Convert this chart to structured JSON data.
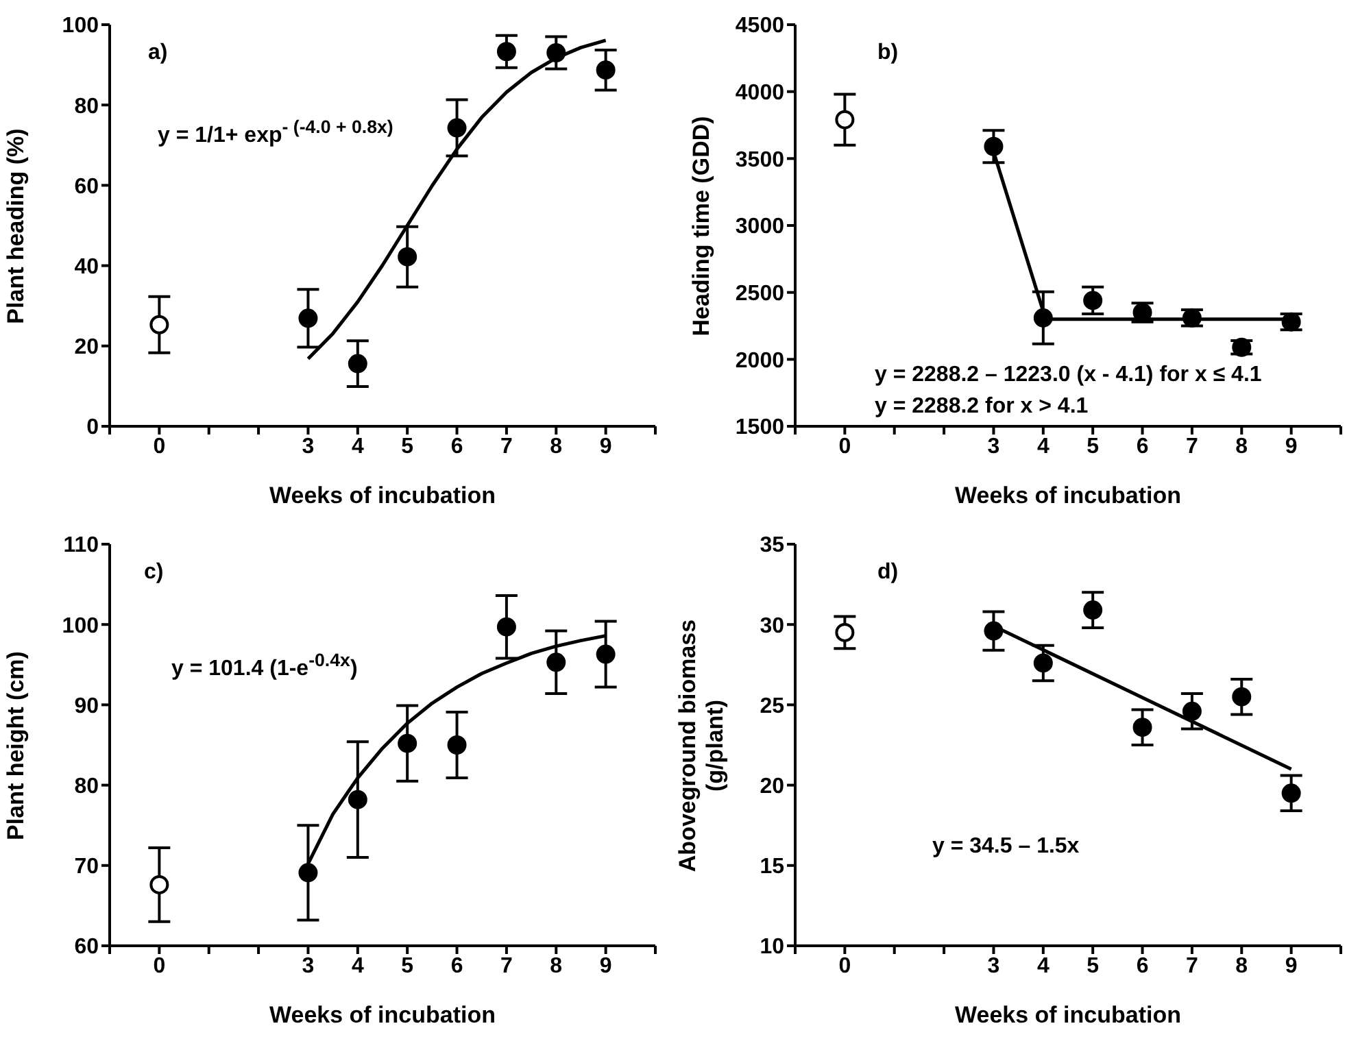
{
  "chart_data": [
    {
      "type": "scatter",
      "xlabel": "Weeks of incubation",
      "ylabel": "Plant heading (%)",
      "annotations": [
        "a)",
        "y = 1/1+ exp$^{- (-4.0 + 0.8x)}$"
      ],
      "xlim": [
        -1,
        10
      ],
      "xticks": [
        {
          "value": -1,
          "label": null
        },
        0,
        {
          "value": 1,
          "label": null
        },
        {
          "value": 2,
          "label": null
        },
        3,
        4,
        5,
        6,
        7,
        8,
        9,
        {
          "value": 10,
          "label": null
        }
      ],
      "ylim": [
        0,
        100
      ],
      "yticks": [
        0,
        20,
        40,
        60,
        80,
        100
      ],
      "series": [
        {
          "color": "#ffffff",
          "marker": "circle",
          "x": [
            0
          ],
          "values": [
            25.3
          ],
          "errors": [
            7
          ]
        },
        {
          "color": "#000000",
          "marker": "circle",
          "x": [
            3,
            4,
            5,
            6,
            7,
            8,
            9
          ],
          "values": [
            26.9,
            15.6,
            42.2,
            74.3,
            93.3,
            93,
            88.7
          ],
          "errors": [
            7.2,
            5.7,
            7.5,
            7,
            4,
            4,
            5
          ]
        },
        {
          "type": "line",
          "color": "#000000",
          "x": [
            3,
            3.5,
            4,
            4.5,
            5,
            5.5,
            6,
            6.5,
            7,
            7.5,
            8,
            8.5,
            9
          ],
          "values": [
            16.8,
            23.1,
            31,
            40.1,
            50,
            59.9,
            69,
            76.9,
            83.2,
            88.1,
            91.7,
            94.3,
            96.1
          ]
        }
      ]
    },
    {
      "type": "scatter",
      "xlabel": "Weeks of incubation",
      "ylabel": "Heading time (GDD)",
      "annotations": [
        "b)",
        "y  = 2288.2 – 1223.0 (x - 4.1) for x ≤ 4.1",
        "y  = 2288.2 for x > 4.1"
      ],
      "xlim": [
        -1,
        10
      ],
      "xticks": [
        {
          "value": -1,
          "label": null
        },
        0,
        {
          "value": 1,
          "label": null
        },
        {
          "value": 2,
          "label": null
        },
        3,
        4,
        5,
        6,
        7,
        8,
        9,
        {
          "value": 10,
          "label": null
        }
      ],
      "ylim": [
        1500,
        4500
      ],
      "yticks": [
        1500,
        2000,
        2500,
        3000,
        3500,
        4000,
        4500
      ],
      "series": [
        {
          "color": "#ffffff",
          "marker": "circle",
          "x": [
            0
          ],
          "values": [
            3790
          ],
          "errors": [
            190
          ]
        },
        {
          "color": "#000000",
          "marker": "circle",
          "x": [
            3,
            4,
            5,
            6,
            7,
            8,
            9
          ],
          "values": [
            3590,
            2310,
            2440,
            2350,
            2310,
            2090,
            2280
          ],
          "errors": [
            120,
            195,
            100,
            70,
            60,
            50,
            60
          ]
        },
        {
          "type": "line",
          "color": "#000000",
          "x": [
            3,
            4.05,
            9
          ],
          "values": [
            3550,
            2300,
            2300
          ]
        }
      ]
    },
    {
      "type": "scatter",
      "xlabel": "Weeks of incubation",
      "ylabel": "Plant height (cm)",
      "annotations": [
        "c)",
        "y = 101.4 (1-e$^{-0.4x}$)"
      ],
      "xlim": [
        -1,
        10
      ],
      "xticks": [
        {
          "value": -1,
          "label": null
        },
        0,
        {
          "value": 1,
          "label": null
        },
        {
          "value": 2,
          "label": null
        },
        3,
        4,
        5,
        6,
        7,
        8,
        9,
        {
          "value": 10,
          "label": null
        }
      ],
      "ylim": [
        60,
        110
      ],
      "yticks": [
        60,
        70,
        80,
        90,
        100,
        110
      ],
      "series": [
        {
          "color": "#ffffff",
          "marker": "circle",
          "x": [
            0
          ],
          "values": [
            67.6
          ],
          "errors": [
            4.6
          ]
        },
        {
          "color": "#000000",
          "marker": "circle",
          "x": [
            3,
            4,
            5,
            6,
            7,
            8,
            9
          ],
          "values": [
            69.1,
            78.2,
            85.2,
            85,
            99.7,
            95.3,
            96.3
          ],
          "errors": [
            5.9,
            7.2,
            4.7,
            4.1,
            3.9,
            3.9,
            4.1
          ]
        },
        {
          "type": "line",
          "color": "#000000",
          "x": [
            3,
            3.5,
            4,
            4.5,
            5,
            5.5,
            6,
            6.5,
            7,
            7.5,
            8,
            8.5,
            9
          ],
          "values": [
            70.2,
            76.4,
            80.9,
            84.6,
            87.7,
            90.2,
            92.2,
            93.9,
            95.2,
            96.4,
            97.3,
            98,
            98.6
          ]
        }
      ]
    },
    {
      "type": "scatter",
      "xlabel": "Weeks of incubation",
      "ylabel": "Aboveground biomass (g/plant)",
      "annotations": [
        "d)",
        "y = 34.5 – 1.5x"
      ],
      "xlim": [
        -1,
        10
      ],
      "xticks": [
        {
          "value": -1,
          "label": null
        },
        0,
        {
          "value": 1,
          "label": null
        },
        {
          "value": 2,
          "label": null
        },
        3,
        4,
        5,
        6,
        7,
        8,
        9,
        {
          "value": 10,
          "label": null
        }
      ],
      "ylim": [
        10,
        35
      ],
      "yticks": [
        10,
        15,
        20,
        25,
        30,
        35
      ],
      "series": [
        {
          "color": "#ffffff",
          "marker": "circle",
          "x": [
            0
          ],
          "values": [
            29.5
          ],
          "errors": [
            1
          ]
        },
        {
          "color": "#000000",
          "marker": "circle",
          "x": [
            3,
            4,
            5,
            6,
            7,
            8,
            9
          ],
          "values": [
            29.6,
            27.6,
            30.9,
            23.6,
            24.6,
            25.5,
            19.5
          ],
          "errors": [
            1.2,
            1.1,
            1.1,
            1.1,
            1.1,
            1.1,
            1.1
          ]
        },
        {
          "type": "line",
          "color": "#000000",
          "x": [
            3,
            9
          ],
          "values": [
            29.9,
            21
          ]
        }
      ]
    }
  ]
}
